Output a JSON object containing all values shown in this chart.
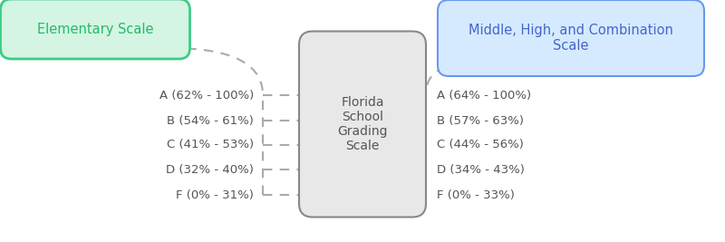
{
  "title": "Florida\nSchool\nGrading\nScale",
  "center_box_color": "#e8e8e8",
  "center_box_edge": "#888888",
  "left_box_label": "Elementary Scale",
  "left_box_fill": "#d4f5e4",
  "left_box_edge": "#3dcc88",
  "left_box_text_color": "#22bb66",
  "right_box_label": "Middle, High, and Combination\nScale",
  "right_box_fill": "#d6eaff",
  "right_box_edge": "#6699ee",
  "right_box_text_color": "#4466cc",
  "left_grades": [
    "A (62% - 100%)",
    "B (54% - 61%)",
    "C (41% - 53%)",
    "D (32% - 40%)",
    "F (0% - 31%)"
  ],
  "right_grades": [
    "A (64% - 100%)",
    "B (57% - 63%)",
    "C (44% - 56%)",
    "D (34% - 43%)",
    "F (0% - 33%)"
  ],
  "grade_text_color": "#555555",
  "dashed_color": "#aaaaaa",
  "center_text_color": "#555555",
  "bg_color": "#ffffff",
  "figw": 8.0,
  "figh": 2.67,
  "dpi": 100
}
